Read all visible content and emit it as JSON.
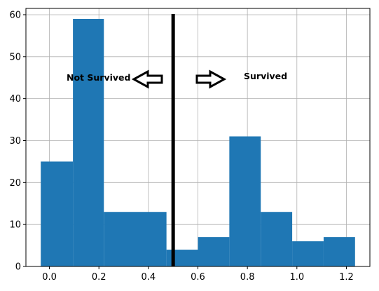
{
  "chart_data": {
    "type": "bar",
    "title": "",
    "xlabel": "",
    "ylabel": "",
    "xlim": [
      -0.095,
      1.295
    ],
    "ylim": [
      0,
      61.5
    ],
    "grid": true,
    "bar_color": "#1f77b4",
    "bars": [
      {
        "x0": -0.035,
        "x1": 0.095,
        "value": 25
      },
      {
        "x0": 0.095,
        "x1": 0.22,
        "value": 59
      },
      {
        "x0": 0.22,
        "x1": 0.473,
        "value": 13
      },
      {
        "x0": 0.473,
        "x1": 0.6,
        "value": 4
      },
      {
        "x0": 0.6,
        "x1": 0.727,
        "value": 7
      },
      {
        "x0": 0.727,
        "x1": 0.854,
        "value": 31
      },
      {
        "x0": 0.854,
        "x1": 0.981,
        "value": 13
      },
      {
        "x0": 0.981,
        "x1": 1.108,
        "value": 6
      },
      {
        "x0": 1.108,
        "x1": 1.235,
        "value": 7
      }
    ],
    "x_ticks": [
      0.0,
      0.2,
      0.4,
      0.6,
      0.8,
      1.0,
      1.2
    ],
    "x_tick_labels": [
      "0.0",
      "0.2",
      "0.4",
      "0.6",
      "0.8",
      "1.0",
      "1.2"
    ],
    "y_ticks": [
      0,
      10,
      20,
      30,
      40,
      50,
      60
    ],
    "y_tick_labels": [
      "0",
      "10",
      "20",
      "30",
      "40",
      "50",
      "60"
    ],
    "threshold_line": {
      "x": 0.5,
      "color": "#000000"
    },
    "annotations": {
      "left_label": "Not Survived",
      "right_label": "Survived",
      "left_arrow_direction": "left",
      "right_arrow_direction": "right"
    }
  }
}
